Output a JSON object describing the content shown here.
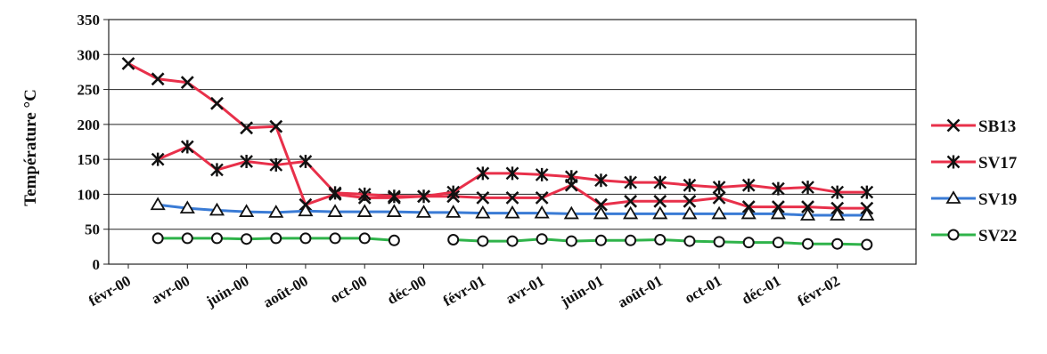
{
  "chart_data": {
    "type": "line",
    "title": "",
    "xlabel": "",
    "ylabel": "Température °C",
    "ylim": [
      0,
      350
    ],
    "yticks": [
      0,
      50,
      100,
      150,
      200,
      250,
      300,
      350
    ],
    "x_tick_labels": [
      "févr-00",
      "avr-00",
      "juin-00",
      "août-00",
      "oct-00",
      "déc-00",
      "févr-01",
      "avr-01",
      "juin-01",
      "août-01",
      "oct-01",
      "déc-01",
      "févr-02"
    ],
    "x_range": [
      "2000-02",
      "2002-04"
    ],
    "grid": "horizontal",
    "legend_position": "right",
    "series": [
      {
        "name": "SB13",
        "color": "#e8304a",
        "marker": "x",
        "x": [
          "2000-02",
          "2000-03",
          "2000-04",
          "2000-05",
          "2000-06",
          "2000-07",
          "2000-08",
          "2000-09",
          "2000-10",
          "2000-11",
          "2000-12",
          "2001-01",
          "2001-02",
          "2001-03",
          "2001-04",
          "2001-05",
          "2001-06",
          "2001-07",
          "2001-08",
          "2001-09",
          "2001-10",
          "2001-11",
          "2001-12",
          "2002-01",
          "2002-02",
          "2002-03"
        ],
        "values": [
          287,
          265,
          260,
          230,
          195,
          197,
          85,
          100,
          95,
          95,
          97,
          97,
          95,
          95,
          95,
          113,
          85,
          90,
          90,
          90,
          95,
          82,
          82,
          82,
          80,
          80
        ]
      },
      {
        "name": "SV17",
        "color": "#e8304a",
        "marker": "asterisk",
        "x": [
          "2000-03",
          "2000-04",
          "2000-05",
          "2000-06",
          "2000-07",
          "2000-08",
          "2000-09",
          "2000-10",
          "2000-11",
          "2000-12",
          "2001-01",
          "2001-02",
          "2001-03",
          "2001-04",
          "2001-05",
          "2001-06",
          "2001-07",
          "2001-08",
          "2001-09",
          "2001-10",
          "2001-11",
          "2001-12",
          "2002-01",
          "2002-02",
          "2002-03"
        ],
        "values": [
          150,
          168,
          135,
          147,
          142,
          147,
          102,
          100,
          97,
          97,
          103,
          130,
          130,
          128,
          125,
          120,
          117,
          117,
          113,
          110,
          113,
          108,
          110,
          103,
          103
        ]
      },
      {
        "name": "SV19",
        "color": "#3a7bd5",
        "marker": "triangle",
        "x": [
          "2000-03",
          "2000-04",
          "2000-05",
          "2000-06",
          "2000-07",
          "2000-08",
          "2000-09",
          "2000-10",
          "2000-11",
          "2000-12",
          "2001-01",
          "2001-02",
          "2001-03",
          "2001-04",
          "2001-05",
          "2001-06",
          "2001-07",
          "2001-08",
          "2001-09",
          "2001-10",
          "2001-11",
          "2001-12",
          "2002-01",
          "2002-02",
          "2002-03"
        ],
        "values": [
          85,
          80,
          77,
          75,
          74,
          76,
          75,
          75,
          75,
          74,
          74,
          73,
          73,
          73,
          72,
          72,
          72,
          72,
          72,
          72,
          72,
          72,
          70,
          70,
          70
        ]
      },
      {
        "name": "SV22",
        "color": "#2fb34a",
        "marker": "circle",
        "segments": [
          {
            "x": [
              "2000-03",
              "2000-04",
              "2000-05",
              "2000-06",
              "2000-07",
              "2000-08",
              "2000-09",
              "2000-10",
              "2000-11"
            ],
            "values": [
              37,
              37,
              37,
              36,
              37,
              37,
              37,
              37,
              34
            ]
          },
          {
            "x": [
              "2001-01",
              "2001-02",
              "2001-03",
              "2001-04",
              "2001-05",
              "2001-06",
              "2001-07",
              "2001-08",
              "2001-09",
              "2001-10",
              "2001-11",
              "2001-12",
              "2002-01",
              "2002-02",
              "2002-03"
            ],
            "values": [
              35,
              33,
              33,
              36,
              33,
              34,
              34,
              35,
              33,
              32,
              31,
              31,
              29,
              29,
              28
            ]
          }
        ]
      }
    ]
  }
}
